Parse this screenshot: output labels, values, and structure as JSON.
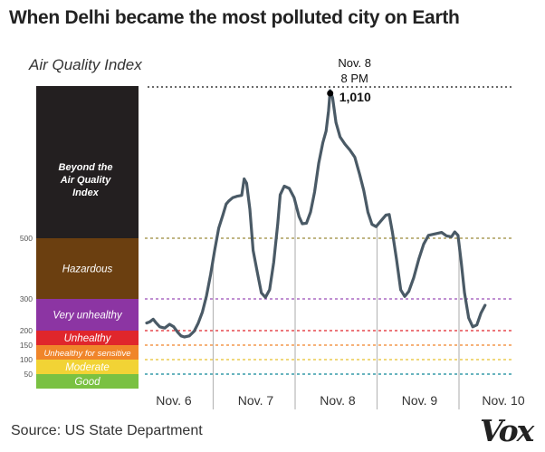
{
  "title": "When Delhi became the most polluted city on Earth",
  "source": "Source: US State Department",
  "logo_text": "Vox",
  "chart_data": {
    "type": "line",
    "ylabel": "Air Quality Index",
    "ylim": [
      0,
      1050
    ],
    "series": [
      {
        "color": "#4a5a66",
        "points": [
          [
            0.0,
            224
          ],
          [
            0.04,
            228
          ],
          [
            0.08,
            236
          ],
          [
            0.11,
            226
          ],
          [
            0.16,
            212
          ],
          [
            0.22,
            208
          ],
          [
            0.28,
            220
          ],
          [
            0.33,
            212
          ],
          [
            0.38,
            194
          ],
          [
            0.42,
            182
          ],
          [
            0.46,
            178
          ],
          [
            0.52,
            182
          ],
          [
            0.58,
            198
          ],
          [
            0.63,
            224
          ],
          [
            0.68,
            258
          ],
          [
            0.73,
            310
          ],
          [
            0.78,
            380
          ],
          [
            0.83,
            460
          ],
          [
            0.88,
            535
          ],
          [
            0.93,
            580
          ],
          [
            0.97,
            618
          ],
          [
            1.0,
            628
          ],
          [
            1.05,
            640
          ],
          [
            1.1,
            645
          ],
          [
            1.16,
            648
          ],
          [
            1.19,
            705
          ],
          [
            1.22,
            690
          ],
          [
            1.26,
            600
          ],
          [
            1.3,
            460
          ],
          [
            1.35,
            388
          ],
          [
            1.4,
            320
          ],
          [
            1.45,
            305
          ],
          [
            1.5,
            330
          ],
          [
            1.55,
            420
          ],
          [
            1.6,
            550
          ],
          [
            1.63,
            650
          ],
          [
            1.68,
            680
          ],
          [
            1.74,
            672
          ],
          [
            1.8,
            640
          ],
          [
            1.86,
            575
          ],
          [
            1.9,
            550
          ],
          [
            1.95,
            552
          ],
          [
            2.0,
            590
          ],
          [
            2.05,
            660
          ],
          [
            2.1,
            760
          ],
          [
            2.15,
            830
          ],
          [
            2.19,
            870
          ],
          [
            2.22,
            940
          ],
          [
            2.24,
            1010
          ],
          [
            2.27,
            985
          ],
          [
            2.31,
            900
          ],
          [
            2.36,
            850
          ],
          [
            2.42,
            825
          ],
          [
            2.48,
            805
          ],
          [
            2.54,
            780
          ],
          [
            2.6,
            720
          ],
          [
            2.65,
            665
          ],
          [
            2.7,
            590
          ],
          [
            2.75,
            548
          ],
          [
            2.8,
            540
          ],
          [
            2.86,
            560
          ],
          [
            2.92,
            580
          ],
          [
            2.96,
            582
          ],
          [
            3.0,
            520
          ],
          [
            3.05,
            430
          ],
          [
            3.1,
            330
          ],
          [
            3.15,
            308
          ],
          [
            3.2,
            325
          ],
          [
            3.26,
            370
          ],
          [
            3.32,
            430
          ],
          [
            3.38,
            480
          ],
          [
            3.44,
            510
          ],
          [
            3.52,
            515
          ],
          [
            3.6,
            520
          ],
          [
            3.66,
            508
          ],
          [
            3.72,
            505
          ],
          [
            3.76,
            522
          ],
          [
            3.8,
            510
          ],
          [
            3.84,
            420
          ],
          [
            3.88,
            320
          ],
          [
            3.93,
            240
          ],
          [
            3.98,
            212
          ],
          [
            4.03,
            218
          ],
          [
            4.08,
            255
          ],
          [
            4.13,
            280
          ]
        ]
      }
    ],
    "x_tick_labels": [
      "Nov. 6",
      "Nov. 7",
      "Nov. 8",
      "Nov. 9",
      "Nov. 10"
    ],
    "y_tick_labels": [
      50,
      100,
      150,
      200,
      300,
      500
    ],
    "categories": [
      {
        "label": "Good",
        "min": 0,
        "max": 50,
        "color": "#7ac142",
        "line": "#2e98a6"
      },
      {
        "label": "Moderate",
        "min": 50,
        "max": 100,
        "color": "#f2d335",
        "line": "#e8c02c"
      },
      {
        "label": "Unhealthy for sensitive",
        "min": 100,
        "max": 150,
        "color": "#f0852a",
        "line": "#f0852a"
      },
      {
        "label": "Unhealthy",
        "min": 150,
        "max": 200,
        "color": "#e0262c",
        "line": "#e0262c"
      },
      {
        "label": "Very unhealthy",
        "min": 200,
        "max": 300,
        "color": "#8c35a3",
        "line": "#9b4db8"
      },
      {
        "label": "Hazardous",
        "min": 300,
        "max": 500,
        "color": "#6b3f10",
        "line": "#9a8a3a"
      },
      {
        "label": "Beyond the Air Quality Index",
        "min": 500,
        "max": 1010,
        "color": "#231f20",
        "line": "#222222"
      }
    ],
    "annotation": {
      "date": "Nov. 8",
      "time": "8 PM",
      "value": "1,010",
      "x": 2.24,
      "y": 1010
    }
  }
}
